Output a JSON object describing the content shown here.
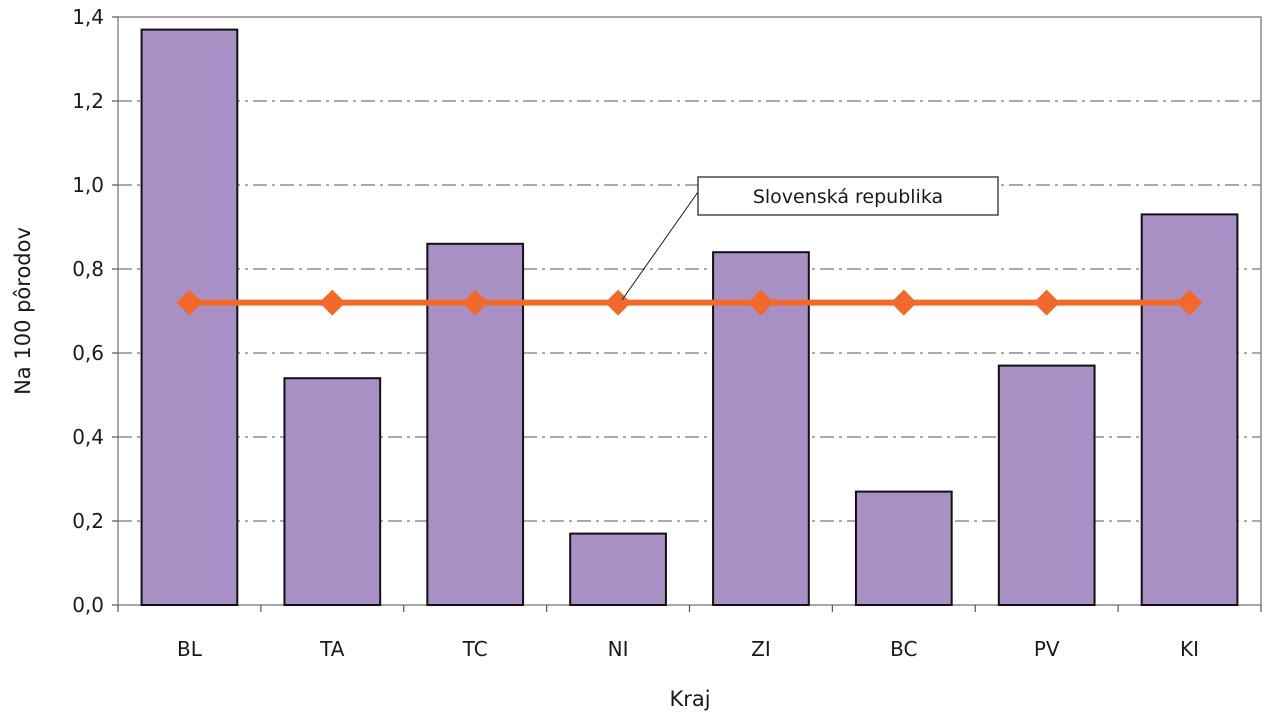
{
  "chart_data": {
    "type": "bar",
    "categories": [
      "BL",
      "TA",
      "TC",
      "NI",
      "ZI",
      "BC",
      "PV",
      "KI"
    ],
    "series": [
      {
        "values": [
          1.37,
          0.54,
          0.86,
          0.17,
          0.84,
          0.27,
          0.57,
          0.93
        ],
        "color": "#a890c4",
        "kind": "bar"
      },
      {
        "name": "Slovenská republika",
        "values": [
          0.72,
          0.72,
          0.72,
          0.72,
          0.72,
          0.72,
          0.72,
          0.72
        ],
        "color": "#f26a2b",
        "kind": "line",
        "marker": "diamond"
      }
    ],
    "xlabel": "Kraj",
    "ylabel": "Na 100 pôrodov",
    "ylim": [
      0,
      1.4
    ],
    "yticks": [
      "0,0",
      "0,2",
      "0,4",
      "0,6",
      "0,8",
      "1,0",
      "1,2",
      "1,4"
    ],
    "grid": "horizontal dash-dot",
    "annotation": "Slovenská republika"
  }
}
